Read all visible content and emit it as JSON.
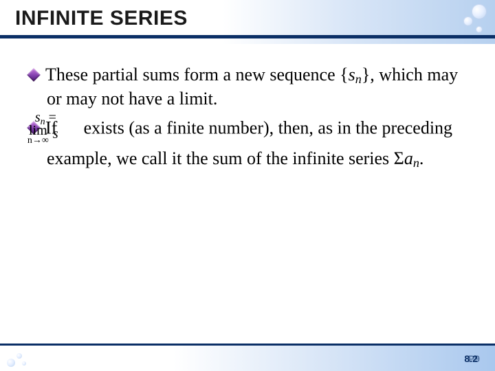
{
  "header": {
    "title": "INFINITE SERIES",
    "gradient_start": "#ffffff",
    "gradient_end": "#b6d0ef",
    "underline_color": "#0b2f66"
  },
  "bullets": {
    "diamond_color": "#7a3aa8",
    "item1": {
      "prefix": "These partial sums form a new sequence {",
      "seq_sym": "s",
      "seq_sub": "n",
      "suffix": "}, which may or may not have a limit."
    },
    "item2": {
      "prefix": "If ",
      "limit_top_lim": "lim",
      "limit_top_expr_s": "s",
      "limit_top_sub": "n",
      "limit_eq": " = ",
      "limit_rhs": "s",
      "limit_bot": "n→∞",
      "mid": " exists (as a finite number), then, as in the preceding example, we call it the sum of the infinite series Σ",
      "series_sym": "a",
      "series_sub": "n",
      "period": "."
    }
  },
  "footer": {
    "page": "8.2",
    "page_overlay": "P9",
    "line_color": "#0b2f66"
  }
}
